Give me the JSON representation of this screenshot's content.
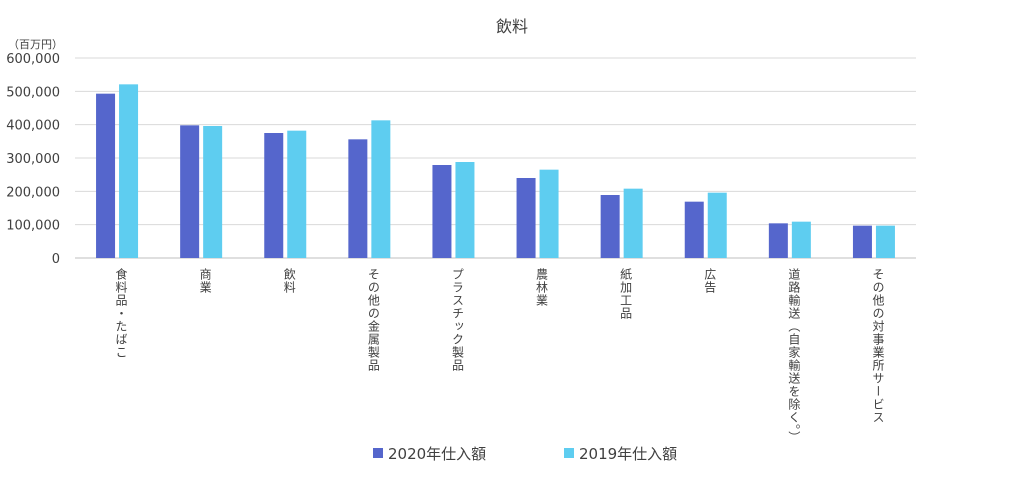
{
  "chart_data": {
    "type": "bar",
    "title": "飲料",
    "unit_label": "（百万円）",
    "xlabel": "",
    "ylabel": "",
    "ylim": [
      0,
      600000
    ],
    "yticks": [
      0,
      100000,
      200000,
      300000,
      400000,
      500000,
      600000
    ],
    "ytick_labels": [
      "0",
      "100,000",
      "200,000",
      "300,000",
      "400,000",
      "500,000",
      "600,000"
    ],
    "grid": true,
    "legend_position": "bottom",
    "categories": [
      "食料品・たばこ",
      "商業",
      "飲料",
      "その他の金属製品",
      "プラスチック製品",
      "農林業",
      "紙加工品",
      "広告",
      "道路輸送（自家輸送を除く。）",
      "その他の対事業所サービス"
    ],
    "series": [
      {
        "name": "2020年仕入額",
        "color": "#5566CC",
        "values": [
          493000,
          398000,
          375000,
          356000,
          279000,
          240000,
          189000,
          169000,
          104000,
          97000
        ]
      },
      {
        "name": "2019年仕入額",
        "color": "#5ECDF0",
        "values": [
          521000,
          396000,
          382000,
          413000,
          288000,
          265000,
          208000,
          196000,
          109000,
          97000
        ]
      }
    ]
  }
}
